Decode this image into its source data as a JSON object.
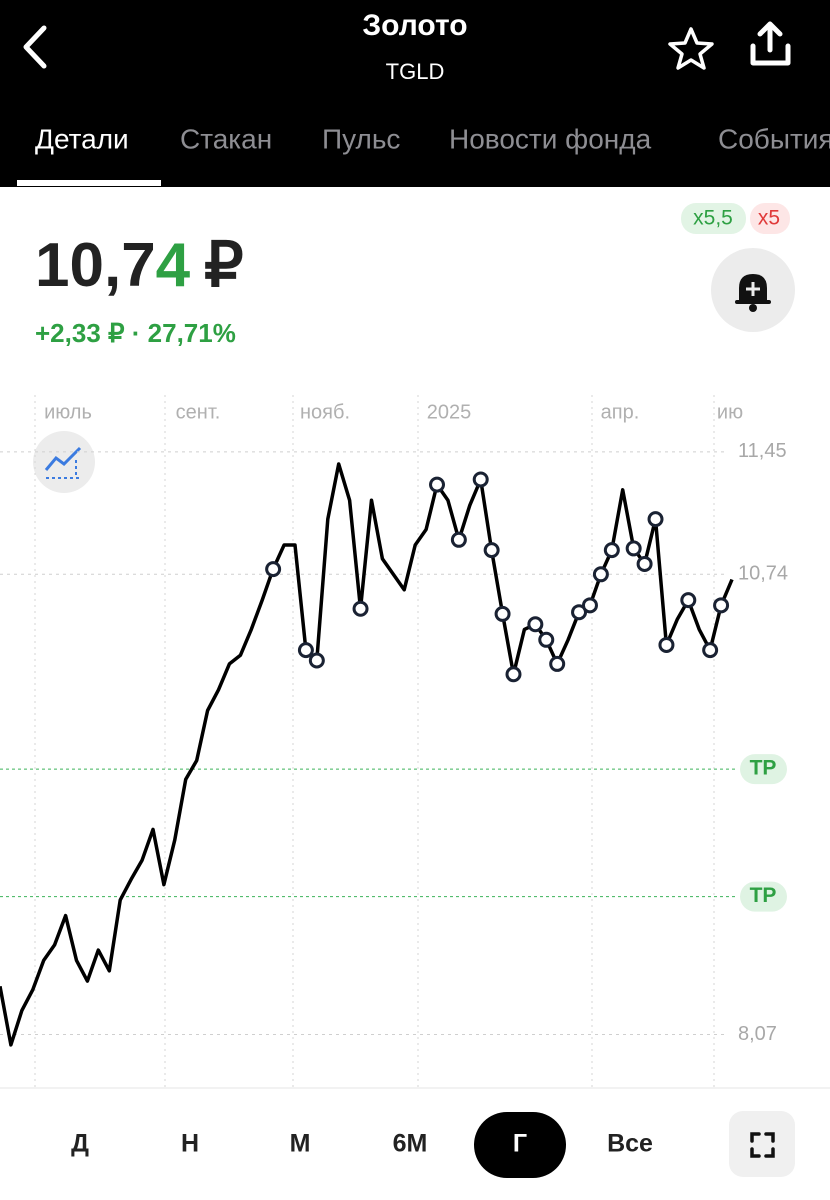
{
  "header": {
    "title": "Золото",
    "subtitle": "TGLD"
  },
  "tabs": [
    "Детали",
    "Стакан",
    "Пульс",
    "Новости фонда",
    "События"
  ],
  "badges": [
    "x5,5",
    "x5"
  ],
  "price": {
    "main": "10,7",
    "last_digit": "4",
    "currency": "₽"
  },
  "change": "+2,33 ₽ · 27,71%",
  "chart_data": {
    "type": "line",
    "x_labels": [
      "июль",
      "сент.",
      "нояб.",
      "2025",
      "апр.",
      "ию"
    ],
    "values": [
      8.35,
      8.01,
      8.21,
      8.33,
      8.5,
      8.59,
      8.76,
      8.5,
      8.38,
      8.56,
      8.44,
      8.85,
      8.97,
      9.08,
      9.26,
      8.94,
      9.2,
      9.55,
      9.66,
      9.95,
      10.07,
      10.22,
      10.27,
      10.42,
      10.59,
      10.77,
      10.91,
      10.91,
      10.3,
      10.24,
      11.06,
      11.38,
      11.17,
      10.54,
      11.17,
      10.83,
      10.74,
      10.65,
      10.91,
      11.0,
      11.26,
      11.17,
      10.94,
      11.14,
      11.29,
      10.88,
      10.51,
      10.16,
      10.42,
      10.45,
      10.36,
      10.22,
      10.36,
      10.52,
      10.56,
      10.74,
      10.88,
      11.23,
      10.89,
      10.8,
      11.06,
      10.33,
      10.48,
      10.59,
      10.42,
      10.3,
      10.56,
      10.71
    ],
    "marker_values": [
      null,
      null,
      null,
      null,
      null,
      null,
      null,
      null,
      null,
      null,
      null,
      null,
      null,
      null,
      null,
      null,
      null,
      null,
      null,
      null,
      null,
      null,
      null,
      null,
      null,
      10.77,
      null,
      null,
      10.3,
      10.24,
      null,
      null,
      null,
      10.54,
      null,
      null,
      null,
      null,
      null,
      null,
      11.26,
      null,
      10.94,
      null,
      11.29,
      10.88,
      10.51,
      10.16,
      null,
      10.45,
      10.36,
      10.22,
      null,
      10.52,
      10.56,
      10.74,
      10.88,
      null,
      10.89,
      10.8,
      11.06,
      10.33,
      null,
      10.59,
      null,
      10.3,
      10.56,
      null
    ],
    "color": "#000000",
    "ylim": [
      7.76,
      11.78
    ],
    "yticks": [
      {
        "value": 11.45,
        "label": "11,45"
      },
      {
        "value": 10.74,
        "label": "10,74"
      },
      {
        "value": 8.07,
        "label": "8,07"
      }
    ],
    "tp_lines": [
      {
        "value": 9.61,
        "label": "TP"
      },
      {
        "value": 8.87,
        "label": "TP"
      }
    ]
  },
  "periods": [
    "Д",
    "Н",
    "М",
    "6M",
    "Г",
    "Все"
  ],
  "selected_period": "Г"
}
